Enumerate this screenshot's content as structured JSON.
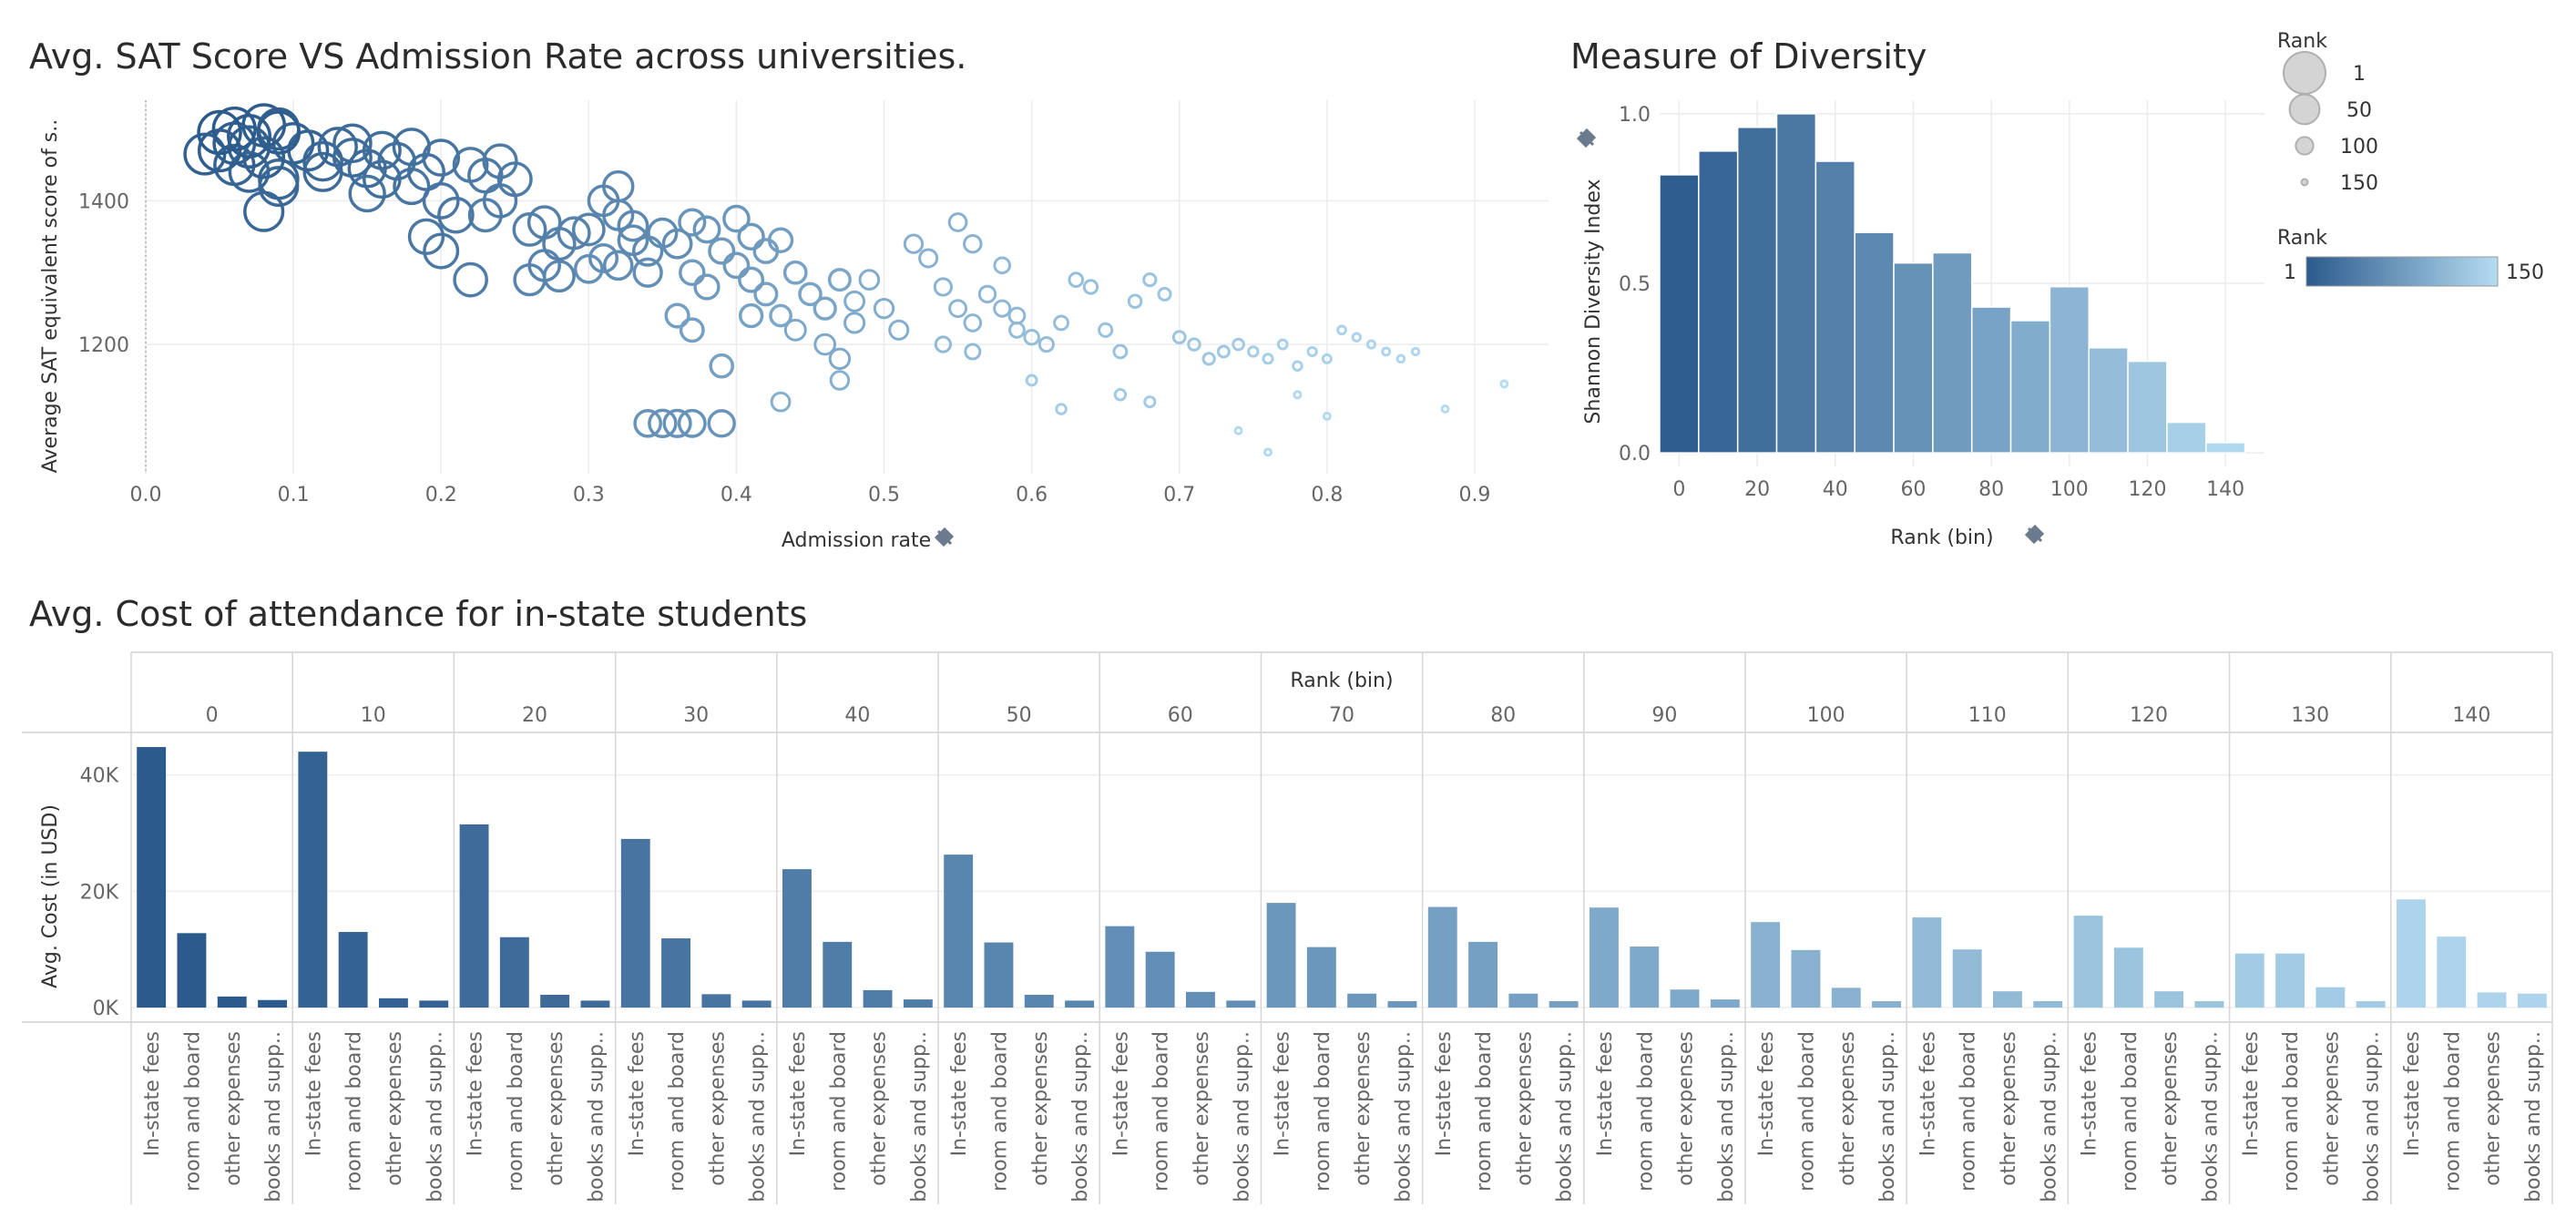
{
  "scatter_title": "Avg. SAT Score VS Admission Rate across universities.",
  "diversity_title": "Measure of Diversity",
  "cost_title": "Avg. Cost of attendance for in-state students",
  "legend": {
    "size_title": "Rank",
    "size_items": [
      "1",
      "50",
      "100",
      "150"
    ],
    "color_title": "Rank",
    "color_min": "1",
    "color_max": "150",
    "color_low": "#2b5a8c",
    "color_high": "#b5dcf2"
  },
  "chart_data": [
    {
      "type": "scatter",
      "title": "Avg. SAT Score VS Admission Rate across universities.",
      "xlabel": "Admission rate",
      "ylabel": "Average SAT equivalent score of s..",
      "xlim": [
        0.0,
        0.95
      ],
      "ylim": [
        1020,
        1540
      ],
      "x_ticks": [
        "0.0",
        "0.1",
        "0.2",
        "0.3",
        "0.4",
        "0.5",
        "0.6",
        "0.7",
        "0.8",
        "0.9"
      ],
      "x_tick_values": [
        0.0,
        0.1,
        0.2,
        0.3,
        0.4,
        0.5,
        0.6,
        0.7,
        0.8,
        0.9
      ],
      "y_ticks": [
        "1200",
        "1400"
      ],
      "y_tick_values": [
        1200,
        1400
      ],
      "points": [
        {
          "x": 0.05,
          "y": 1495,
          "rank": 1
        },
        {
          "x": 0.06,
          "y": 1500,
          "rank": 2
        },
        {
          "x": 0.07,
          "y": 1490,
          "rank": 3
        },
        {
          "x": 0.08,
          "y": 1505,
          "rank": 4
        },
        {
          "x": 0.09,
          "y": 1495,
          "rank": 5
        },
        {
          "x": 0.05,
          "y": 1470,
          "rank": 6
        },
        {
          "x": 0.06,
          "y": 1480,
          "rank": 7
        },
        {
          "x": 0.07,
          "y": 1475,
          "rank": 8
        },
        {
          "x": 0.09,
          "y": 1500,
          "rank": 9
        },
        {
          "x": 0.04,
          "y": 1465,
          "rank": 10
        },
        {
          "x": 0.08,
          "y": 1460,
          "rank": 11
        },
        {
          "x": 0.1,
          "y": 1480,
          "rank": 12
        },
        {
          "x": 0.06,
          "y": 1450,
          "rank": 13
        },
        {
          "x": 0.11,
          "y": 1470,
          "rank": 14
        },
        {
          "x": 0.07,
          "y": 1440,
          "rank": 15
        },
        {
          "x": 0.09,
          "y": 1430,
          "rank": 16
        },
        {
          "x": 0.08,
          "y": 1385,
          "rank": 17
        },
        {
          "x": 0.09,
          "y": 1420,
          "rank": 18
        },
        {
          "x": 0.12,
          "y": 1455,
          "rank": 19
        },
        {
          "x": 0.13,
          "y": 1475,
          "rank": 20
        },
        {
          "x": 0.12,
          "y": 1440,
          "rank": 21
        },
        {
          "x": 0.14,
          "y": 1460,
          "rank": 22
        },
        {
          "x": 0.14,
          "y": 1480,
          "rank": 23
        },
        {
          "x": 0.15,
          "y": 1445,
          "rank": 24
        },
        {
          "x": 0.16,
          "y": 1470,
          "rank": 25
        },
        {
          "x": 0.16,
          "y": 1430,
          "rank": 26
        },
        {
          "x": 0.17,
          "y": 1455,
          "rank": 27
        },
        {
          "x": 0.18,
          "y": 1475,
          "rank": 28
        },
        {
          "x": 0.19,
          "y": 1440,
          "rank": 29
        },
        {
          "x": 0.2,
          "y": 1460,
          "rank": 30
        },
        {
          "x": 0.15,
          "y": 1410,
          "rank": 31
        },
        {
          "x": 0.18,
          "y": 1420,
          "rank": 32
        },
        {
          "x": 0.2,
          "y": 1400,
          "rank": 33
        },
        {
          "x": 0.21,
          "y": 1380,
          "rank": 34
        },
        {
          "x": 0.19,
          "y": 1350,
          "rank": 35
        },
        {
          "x": 0.2,
          "y": 1330,
          "rank": 36
        },
        {
          "x": 0.22,
          "y": 1450,
          "rank": 37
        },
        {
          "x": 0.23,
          "y": 1435,
          "rank": 38
        },
        {
          "x": 0.24,
          "y": 1455,
          "rank": 39
        },
        {
          "x": 0.25,
          "y": 1430,
          "rank": 40
        },
        {
          "x": 0.22,
          "y": 1290,
          "rank": 41
        },
        {
          "x": 0.24,
          "y": 1400,
          "rank": 42
        },
        {
          "x": 0.23,
          "y": 1380,
          "rank": 43
        },
        {
          "x": 0.26,
          "y": 1360,
          "rank": 44
        },
        {
          "x": 0.27,
          "y": 1370,
          "rank": 45
        },
        {
          "x": 0.28,
          "y": 1340,
          "rank": 46
        },
        {
          "x": 0.29,
          "y": 1355,
          "rank": 47
        },
        {
          "x": 0.3,
          "y": 1360,
          "rank": 48
        },
        {
          "x": 0.27,
          "y": 1310,
          "rank": 49
        },
        {
          "x": 0.26,
          "y": 1290,
          "rank": 50
        },
        {
          "x": 0.28,
          "y": 1295,
          "rank": 51
        },
        {
          "x": 0.31,
          "y": 1400,
          "rank": 52
        },
        {
          "x": 0.32,
          "y": 1420,
          "rank": 53
        },
        {
          "x": 0.32,
          "y": 1380,
          "rank": 54
        },
        {
          "x": 0.33,
          "y": 1365,
          "rank": 55
        },
        {
          "x": 0.33,
          "y": 1345,
          "rank": 56
        },
        {
          "x": 0.34,
          "y": 1330,
          "rank": 57
        },
        {
          "x": 0.35,
          "y": 1355,
          "rank": 58
        },
        {
          "x": 0.36,
          "y": 1340,
          "rank": 59
        },
        {
          "x": 0.32,
          "y": 1310,
          "rank": 60
        },
        {
          "x": 0.34,
          "y": 1300,
          "rank": 61
        },
        {
          "x": 0.31,
          "y": 1320,
          "rank": 62
        },
        {
          "x": 0.3,
          "y": 1305,
          "rank": 63
        },
        {
          "x": 0.35,
          "y": 1090,
          "rank": 64
        },
        {
          "x": 0.36,
          "y": 1090,
          "rank": 65
        },
        {
          "x": 0.37,
          "y": 1090,
          "rank": 66
        },
        {
          "x": 0.34,
          "y": 1090,
          "rank": 67
        },
        {
          "x": 0.39,
          "y": 1090,
          "rank": 68
        },
        {
          "x": 0.37,
          "y": 1370,
          "rank": 69
        },
        {
          "x": 0.38,
          "y": 1360,
          "rank": 70
        },
        {
          "x": 0.4,
          "y": 1375,
          "rank": 71
        },
        {
          "x": 0.41,
          "y": 1350,
          "rank": 72
        },
        {
          "x": 0.39,
          "y": 1330,
          "rank": 73
        },
        {
          "x": 0.4,
          "y": 1310,
          "rank": 74
        },
        {
          "x": 0.37,
          "y": 1300,
          "rank": 75
        },
        {
          "x": 0.38,
          "y": 1280,
          "rank": 76
        },
        {
          "x": 0.41,
          "y": 1290,
          "rank": 77
        },
        {
          "x": 0.42,
          "y": 1330,
          "rank": 78
        },
        {
          "x": 0.43,
          "y": 1345,
          "rank": 79
        },
        {
          "x": 0.36,
          "y": 1240,
          "rank": 80
        },
        {
          "x": 0.37,
          "y": 1220,
          "rank": 81
        },
        {
          "x": 0.39,
          "y": 1170,
          "rank": 82
        },
        {
          "x": 0.41,
          "y": 1240,
          "rank": 83
        },
        {
          "x": 0.42,
          "y": 1270,
          "rank": 84
        },
        {
          "x": 0.44,
          "y": 1300,
          "rank": 85
        },
        {
          "x": 0.45,
          "y": 1270,
          "rank": 86
        },
        {
          "x": 0.46,
          "y": 1250,
          "rank": 87
        },
        {
          "x": 0.47,
          "y": 1290,
          "rank": 88
        },
        {
          "x": 0.43,
          "y": 1240,
          "rank": 89
        },
        {
          "x": 0.44,
          "y": 1220,
          "rank": 90
        },
        {
          "x": 0.46,
          "y": 1200,
          "rank": 91
        },
        {
          "x": 0.47,
          "y": 1180,
          "rank": 92
        },
        {
          "x": 0.48,
          "y": 1230,
          "rank": 93
        },
        {
          "x": 0.48,
          "y": 1260,
          "rank": 94
        },
        {
          "x": 0.49,
          "y": 1290,
          "rank": 95
        },
        {
          "x": 0.5,
          "y": 1250,
          "rank": 96
        },
        {
          "x": 0.51,
          "y": 1220,
          "rank": 97
        },
        {
          "x": 0.43,
          "y": 1120,
          "rank": 98
        },
        {
          "x": 0.47,
          "y": 1150,
          "rank": 99
        },
        {
          "x": 0.52,
          "y": 1340,
          "rank": 100
        },
        {
          "x": 0.53,
          "y": 1320,
          "rank": 101
        },
        {
          "x": 0.55,
          "y": 1370,
          "rank": 102
        },
        {
          "x": 0.56,
          "y": 1340,
          "rank": 103
        },
        {
          "x": 0.54,
          "y": 1280,
          "rank": 104
        },
        {
          "x": 0.55,
          "y": 1250,
          "rank": 105
        },
        {
          "x": 0.56,
          "y": 1230,
          "rank": 106
        },
        {
          "x": 0.57,
          "y": 1270,
          "rank": 107
        },
        {
          "x": 0.58,
          "y": 1250,
          "rank": 108
        },
        {
          "x": 0.59,
          "y": 1240,
          "rank": 109
        },
        {
          "x": 0.58,
          "y": 1310,
          "rank": 110
        },
        {
          "x": 0.54,
          "y": 1200,
          "rank": 111
        },
        {
          "x": 0.56,
          "y": 1190,
          "rank": 112
        },
        {
          "x": 0.59,
          "y": 1220,
          "rank": 113
        },
        {
          "x": 0.6,
          "y": 1210,
          "rank": 114
        },
        {
          "x": 0.61,
          "y": 1200,
          "rank": 115
        },
        {
          "x": 0.62,
          "y": 1230,
          "rank": 116
        },
        {
          "x": 0.63,
          "y": 1290,
          "rank": 117
        },
        {
          "x": 0.64,
          "y": 1280,
          "rank": 118
        },
        {
          "x": 0.65,
          "y": 1220,
          "rank": 119
        },
        {
          "x": 0.66,
          "y": 1190,
          "rank": 120
        },
        {
          "x": 0.67,
          "y": 1260,
          "rank": 121
        },
        {
          "x": 0.68,
          "y": 1290,
          "rank": 122
        },
        {
          "x": 0.69,
          "y": 1270,
          "rank": 123
        },
        {
          "x": 0.7,
          "y": 1210,
          "rank": 124
        },
        {
          "x": 0.71,
          "y": 1200,
          "rank": 125
        },
        {
          "x": 0.72,
          "y": 1180,
          "rank": 126
        },
        {
          "x": 0.73,
          "y": 1190,
          "rank": 127
        },
        {
          "x": 0.74,
          "y": 1200,
          "rank": 128
        },
        {
          "x": 0.66,
          "y": 1130,
          "rank": 129
        },
        {
          "x": 0.68,
          "y": 1120,
          "rank": 130
        },
        {
          "x": 0.6,
          "y": 1150,
          "rank": 131
        },
        {
          "x": 0.62,
          "y": 1110,
          "rank": 132
        },
        {
          "x": 0.75,
          "y": 1190,
          "rank": 133
        },
        {
          "x": 0.76,
          "y": 1180,
          "rank": 134
        },
        {
          "x": 0.77,
          "y": 1200,
          "rank": 135
        },
        {
          "x": 0.78,
          "y": 1170,
          "rank": 136
        },
        {
          "x": 0.79,
          "y": 1190,
          "rank": 137
        },
        {
          "x": 0.8,
          "y": 1180,
          "rank": 138
        },
        {
          "x": 0.81,
          "y": 1220,
          "rank": 139
        },
        {
          "x": 0.82,
          "y": 1210,
          "rank": 140
        },
        {
          "x": 0.83,
          "y": 1200,
          "rank": 141
        },
        {
          "x": 0.84,
          "y": 1190,
          "rank": 142
        },
        {
          "x": 0.85,
          "y": 1180,
          "rank": 143
        },
        {
          "x": 0.86,
          "y": 1190,
          "rank": 144
        },
        {
          "x": 0.78,
          "y": 1130,
          "rank": 145
        },
        {
          "x": 0.74,
          "y": 1080,
          "rank": 146
        },
        {
          "x": 0.76,
          "y": 1050,
          "rank": 147
        },
        {
          "x": 0.8,
          "y": 1100,
          "rank": 148
        },
        {
          "x": 0.88,
          "y": 1110,
          "rank": 149
        },
        {
          "x": 0.92,
          "y": 1145,
          "rank": 150
        }
      ]
    },
    {
      "type": "bar",
      "title": "Measure of Diversity",
      "xlabel": "Rank (bin)",
      "ylabel": "Shannon Diversity Index",
      "categories": [
        0,
        10,
        20,
        30,
        40,
        50,
        60,
        70,
        80,
        90,
        100,
        110,
        120,
        130,
        140
      ],
      "values": [
        0.82,
        0.89,
        0.96,
        1.0,
        0.86,
        0.65,
        0.56,
        0.59,
        0.43,
        0.39,
        0.49,
        0.31,
        0.27,
        0.09,
        0.03
      ],
      "x_ticks": [
        "0",
        "20",
        "40",
        "60",
        "80",
        "100",
        "120",
        "140"
      ],
      "x_tick_values": [
        0,
        20,
        40,
        60,
        80,
        100,
        120,
        140
      ],
      "y_ticks": [
        "0.0",
        "0.5",
        "1.0"
      ],
      "y_tick_values": [
        0.0,
        0.5,
        1.0
      ],
      "xlim": [
        -5,
        150
      ],
      "ylim": [
        -0.04,
        1.04
      ]
    },
    {
      "type": "bar",
      "title": "Avg. Cost of attendance for in-state students",
      "column_header": "Rank (bin)",
      "ylabel": "Avg. Cost (in USD)",
      "groups": [
        "0",
        "10",
        "20",
        "30",
        "40",
        "50",
        "60",
        "70",
        "80",
        "90",
        "100",
        "110",
        "120",
        "130",
        "140"
      ],
      "categories": [
        "In-state fees",
        "room and board",
        "other expenses",
        "books and supp.."
      ],
      "series": [
        {
          "values": [
            44800,
            12800,
            1900,
            1300
          ]
        },
        {
          "values": [
            44000,
            13000,
            1600,
            1200
          ]
        },
        {
          "values": [
            31500,
            12100,
            2200,
            1200
          ]
        },
        {
          "values": [
            29000,
            11900,
            2300,
            1200
          ]
        },
        {
          "values": [
            23800,
            11300,
            3000,
            1400
          ]
        },
        {
          "values": [
            26300,
            11200,
            2200,
            1200
          ]
        },
        {
          "values": [
            14000,
            9600,
            2700,
            1200
          ]
        },
        {
          "values": [
            18000,
            10400,
            2400,
            1100
          ]
        },
        {
          "values": [
            17300,
            11300,
            2400,
            1100
          ]
        },
        {
          "values": [
            17200,
            10500,
            3100,
            1400
          ]
        },
        {
          "values": [
            14700,
            9900,
            3400,
            1100
          ]
        },
        {
          "values": [
            15500,
            10000,
            2800,
            1100
          ]
        },
        {
          "values": [
            15800,
            10300,
            2800,
            1100
          ]
        },
        {
          "values": [
            9300,
            9300,
            3500,
            1100
          ]
        },
        {
          "values": [
            18600,
            12200,
            2600,
            2400
          ]
        }
      ],
      "y_ticks": [
        "0K",
        "20K",
        "40K"
      ],
      "y_tick_values": [
        0,
        20000,
        40000
      ],
      "ylim": [
        -2500,
        47000
      ]
    }
  ]
}
